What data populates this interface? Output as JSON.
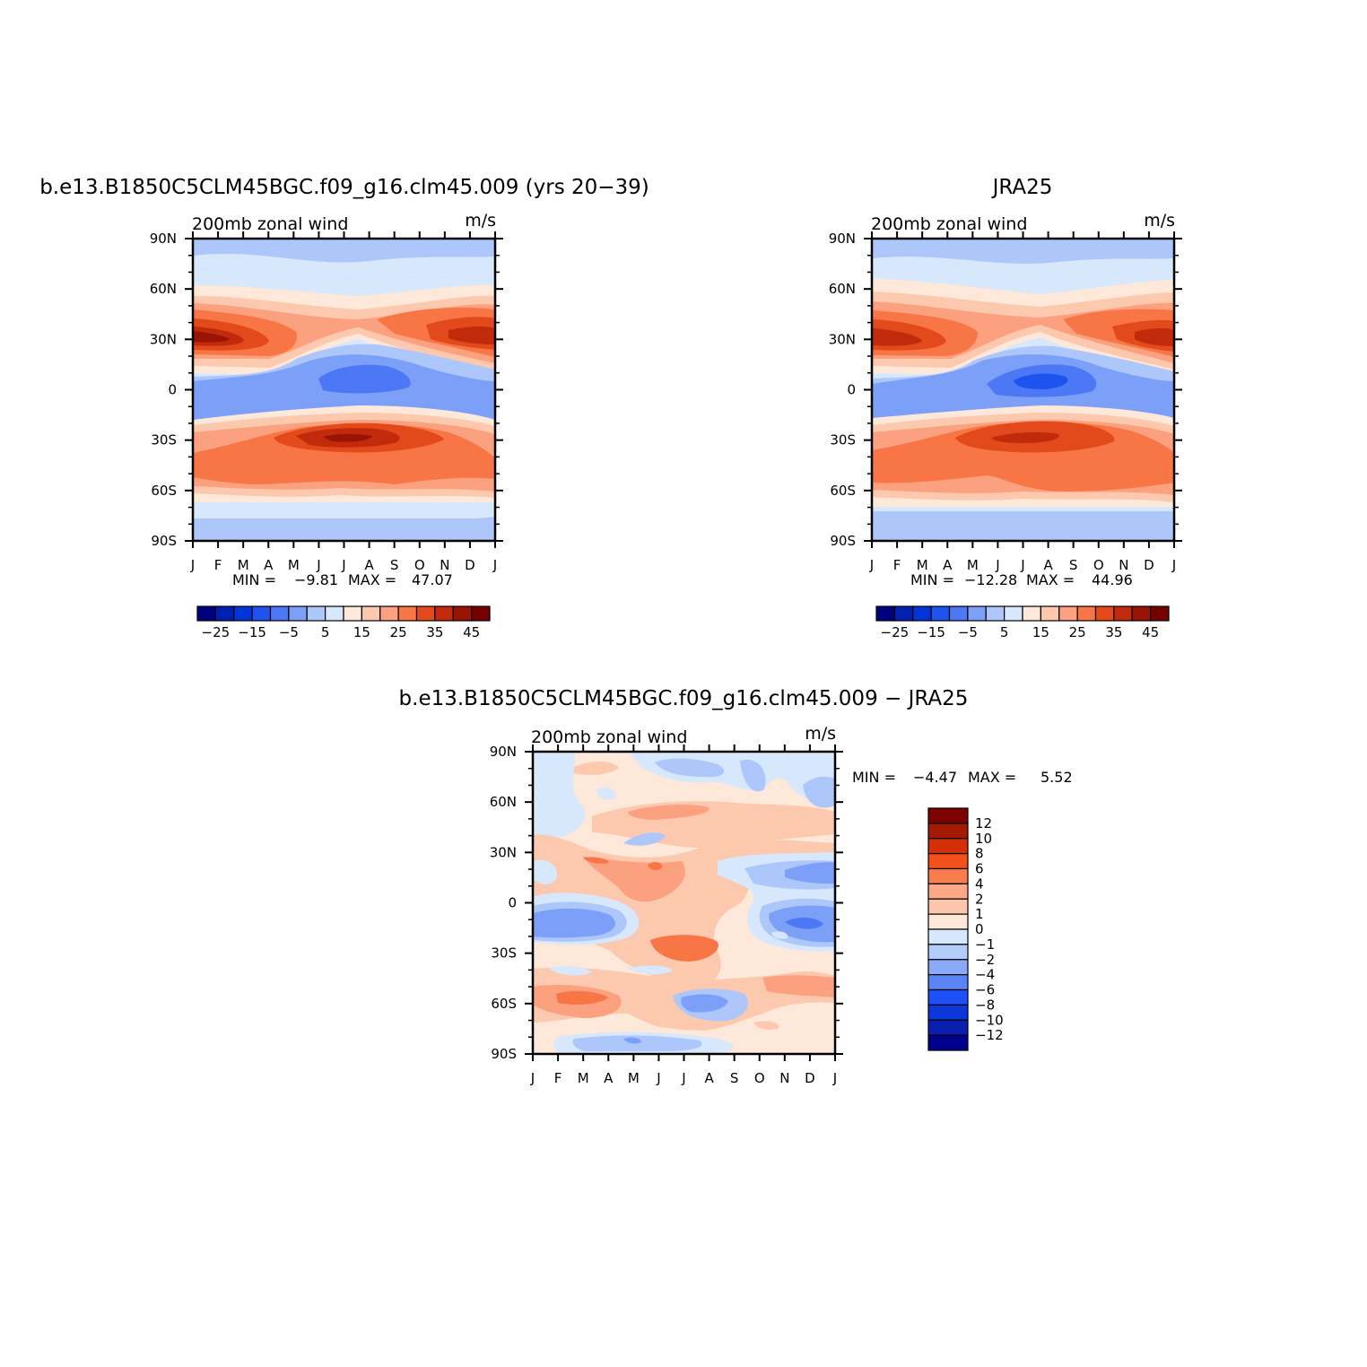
{
  "chart_data": [
    {
      "type": "heatmap",
      "title": "b.e13.B1850C5CLM45BGC.f09_g16.clm45.009 (yrs 20−39)",
      "left_label": "200mb zonal wind",
      "right_label": "m/s",
      "x_ticks": [
        "J",
        "F",
        "M",
        "A",
        "M",
        "J",
        "J",
        "A",
        "S",
        "O",
        "N",
        "D",
        "J"
      ],
      "y_ticks": [
        "90N",
        "60N",
        "30N",
        "0",
        "30S",
        "60S",
        "90S"
      ],
      "ylim": [
        -90,
        90
      ],
      "min_label": "MIN =",
      "min_value": "−9.81",
      "max_label": "MAX =",
      "max_value": "47.07",
      "colorbar": {
        "orientation": "horizontal",
        "levels": [
          -25,
          -20,
          -15,
          -10,
          -5,
          0,
          5,
          10,
          15,
          20,
          25,
          30,
          35,
          40,
          45
        ],
        "tick_labels": [
          "−25",
          "−15",
          "−5",
          "5",
          "15",
          "25",
          "35",
          "45"
        ],
        "colors": [
          "#00007f",
          "#0020b0",
          "#0035d8",
          "#1f53f0",
          "#4c78f5",
          "#7ca0f8",
          "#aec7fb",
          "#d7e8fd",
          "#fde8d9",
          "#fcc9af",
          "#fba17f",
          "#f87546",
          "#e24a1c",
          "#c12a0a",
          "#9a1405",
          "#760000"
        ]
      }
    },
    {
      "type": "heatmap",
      "title": "JRA25",
      "left_label": "200mb zonal wind",
      "right_label": "m/s",
      "x_ticks": [
        "J",
        "F",
        "M",
        "A",
        "M",
        "J",
        "J",
        "A",
        "S",
        "O",
        "N",
        "D",
        "J"
      ],
      "y_ticks": [
        "90N",
        "60N",
        "30N",
        "0",
        "30S",
        "60S",
        "90S"
      ],
      "ylim": [
        -90,
        90
      ],
      "min_label": "MIN =",
      "min_value": "−12.28",
      "max_label": "MAX =",
      "max_value": "44.96",
      "colorbar": {
        "orientation": "horizontal",
        "levels": [
          -25,
          -20,
          -15,
          -10,
          -5,
          0,
          5,
          10,
          15,
          20,
          25,
          30,
          35,
          40,
          45
        ],
        "tick_labels": [
          "−25",
          "−15",
          "−5",
          "5",
          "15",
          "25",
          "35",
          "45"
        ],
        "colors": [
          "#00007f",
          "#0020b0",
          "#0035d8",
          "#1f53f0",
          "#4c78f5",
          "#7ca0f8",
          "#aec7fb",
          "#d7e8fd",
          "#fde8d9",
          "#fcc9af",
          "#fba17f",
          "#f87546",
          "#e24a1c",
          "#c12a0a",
          "#9a1405",
          "#760000"
        ]
      }
    },
    {
      "type": "heatmap",
      "title": "b.e13.B1850C5CLM45BGC.f09_g16.clm45.009 − JRA25",
      "left_label": "200mb zonal wind",
      "right_label": "m/s",
      "x_ticks": [
        "J",
        "F",
        "M",
        "A",
        "M",
        "J",
        "J",
        "A",
        "S",
        "O",
        "N",
        "D",
        "J"
      ],
      "y_ticks": [
        "90N",
        "60N",
        "30N",
        "0",
        "30S",
        "60S",
        "90S"
      ],
      "ylim": [
        -90,
        90
      ],
      "min_label": "MIN =",
      "min_value": "−4.47",
      "max_label": "MAX =",
      "max_value": "5.52",
      "colorbar": {
        "orientation": "vertical",
        "levels": [
          12,
          10,
          8,
          6,
          4,
          2,
          1,
          0,
          -1,
          -2,
          -4,
          -6,
          -8,
          -10,
          -12
        ],
        "tick_labels": [
          "12",
          "10",
          "8",
          "6",
          "4",
          "2",
          "1",
          "0",
          "−1",
          "−2",
          "−4",
          "−6",
          "−8",
          "−10",
          "−12"
        ],
        "colors": [
          "#7f0000",
          "#a31a05",
          "#d42f09",
          "#f4501c",
          "#f97c4d",
          "#fba987",
          "#fcc6ad",
          "#fde8d9",
          "#d7e8fd",
          "#b3cdfb",
          "#8aaaf8",
          "#5a83f5",
          "#1e50f8",
          "#0c36d8",
          "#0b1fae",
          "#00008a"
        ]
      }
    }
  ]
}
